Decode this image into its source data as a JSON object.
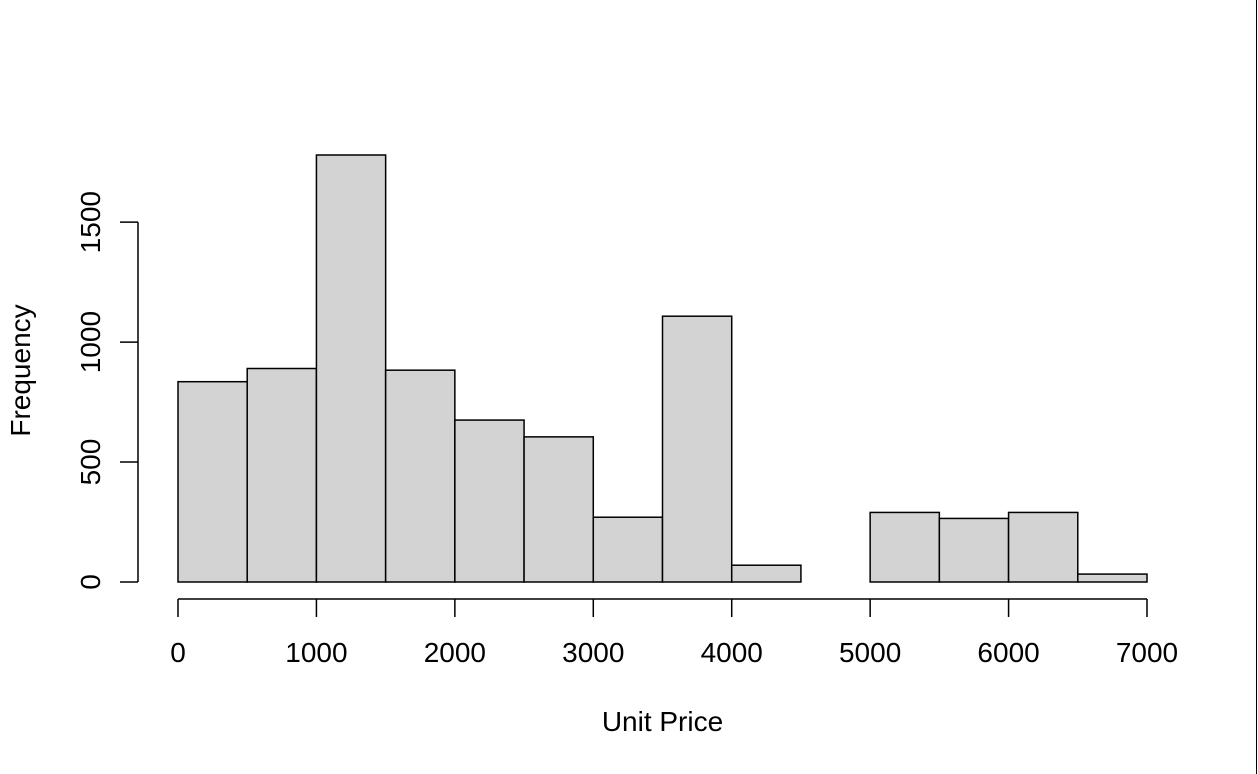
{
  "chart_data": {
    "type": "bar",
    "title": "",
    "xlabel": "Unit Price",
    "ylabel": "Frequency",
    "bins": [
      {
        "x0": 0,
        "x1": 500,
        "value": 835
      },
      {
        "x0": 500,
        "x1": 1000,
        "value": 890
      },
      {
        "x0": 1000,
        "x1": 1500,
        "value": 1780
      },
      {
        "x0": 1500,
        "x1": 2000,
        "value": 883
      },
      {
        "x0": 2000,
        "x1": 2500,
        "value": 675
      },
      {
        "x0": 2500,
        "x1": 3000,
        "value": 605
      },
      {
        "x0": 3000,
        "x1": 3500,
        "value": 270
      },
      {
        "x0": 3500,
        "x1": 4000,
        "value": 1108
      },
      {
        "x0": 4000,
        "x1": 4500,
        "value": 70
      },
      {
        "x0": 4500,
        "x1": 5000,
        "value": 0
      },
      {
        "x0": 5000,
        "x1": 5500,
        "value": 290
      },
      {
        "x0": 5500,
        "x1": 6000,
        "value": 265
      },
      {
        "x0": 6000,
        "x1": 6500,
        "value": 290
      },
      {
        "x0": 6500,
        "x1": 7000,
        "value": 33
      }
    ],
    "xlim": [
      0,
      7000
    ],
    "ylim": [
      0,
      1780
    ],
    "xticks": [
      "0",
      "1000",
      "2000",
      "3000",
      "4000",
      "5000",
      "6000",
      "7000"
    ],
    "yticks": [
      "0",
      "500",
      "1000",
      "1500"
    ],
    "grid": false,
    "legend": "none",
    "colors": {
      "bar_fill": "#d3d3d3",
      "bar_stroke": "#000000",
      "axis": "#000000",
      "background": "#ffffff"
    }
  }
}
